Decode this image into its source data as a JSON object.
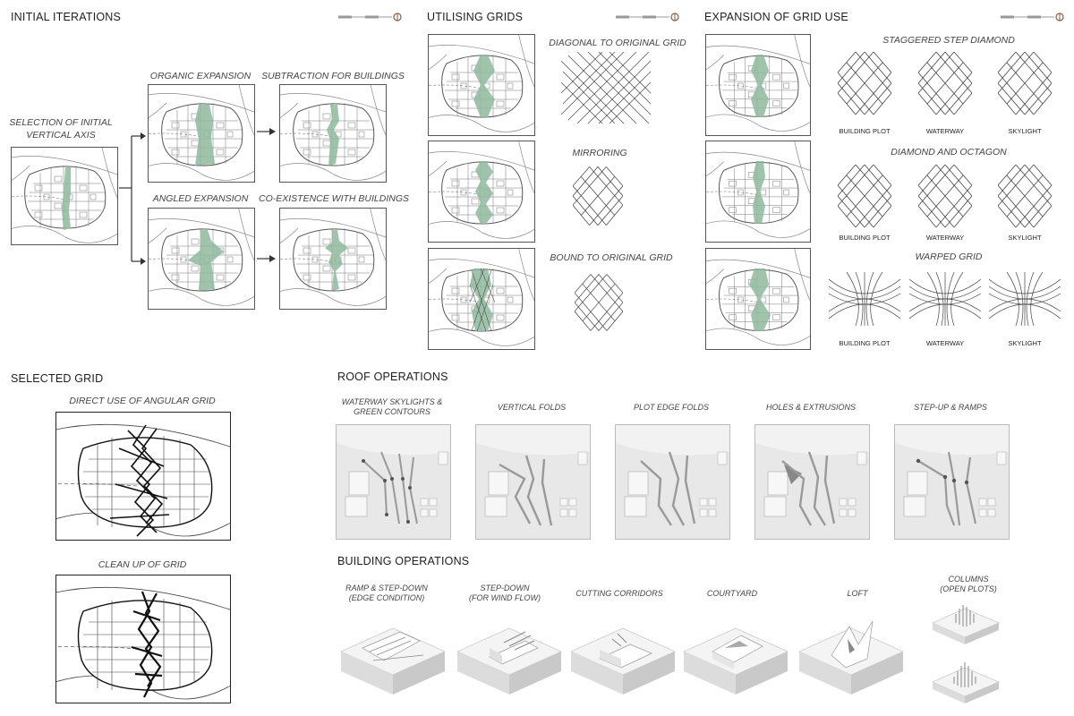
{
  "sections": {
    "initial_iterations": "INITIAL ITERATIONS",
    "utilising_grids": "UTILISING GRIDS",
    "expansion_grid_use": "EXPANSION OF GRID USE",
    "selected_grid": "SELECTED GRID",
    "roof_operations": "ROOF OPERATIONS",
    "building_operations": "BUILDING OPERATIONS"
  },
  "initial": {
    "selection_line1": "SELECTION OF INITIAL",
    "selection_line2": "VERTICAL AXIS",
    "organic": "ORGANIC EXPANSION",
    "subtraction": "SUBTRACTION FOR BUILDINGS",
    "angled": "ANGLED EXPANSION",
    "coexist": "CO-EXISTENCE WITH BUILDINGS"
  },
  "utilising": {
    "diagonal": "DIAGONAL TO ORIGINAL GRID",
    "mirroring": "MIRRORING",
    "bound": "BOUND TO ORIGINAL GRID"
  },
  "expansion": {
    "staggered": "STAGGERED STEP DIAMOND",
    "diamond_octagon": "DIAMOND AND OCTAGON",
    "warped": "WARPED GRID",
    "labels": [
      "BUILDING PLOT",
      "WATERWAY",
      "SKYLIGHT"
    ]
  },
  "selected": {
    "direct": "DIRECT USE OF ANGULAR GRID",
    "cleanup": "CLEAN UP OF GRID"
  },
  "roof": {
    "waterway_line1": "WATERWAY SKYLIGHTS &",
    "waterway_line2": "GREEN CONTOURS",
    "vertical": "VERTICAL FOLDS",
    "plot_edge": "PLOT EDGE FOLDS",
    "holes": "HOLES & EXTRUSIONS",
    "stepup": "STEP-UP & RAMPS"
  },
  "building": {
    "ramp_line1": "RAMP & STEP-DOWN",
    "ramp_line2": "(EDGE CONDITION)",
    "stepdown_line1": "STEP-DOWN",
    "stepdown_line2": "(FOR WIND FLOW)",
    "corridors": "CUTTING CORRIDORS",
    "courtyard": "COURTYARD",
    "loft": "LOFT",
    "columns_line1": "COLUMNS",
    "columns_line2": "(OPEN PLOTS)"
  },
  "colors": {
    "green": "#8fb89c",
    "line": "#555555",
    "render_bg": "#e9e9e9"
  }
}
